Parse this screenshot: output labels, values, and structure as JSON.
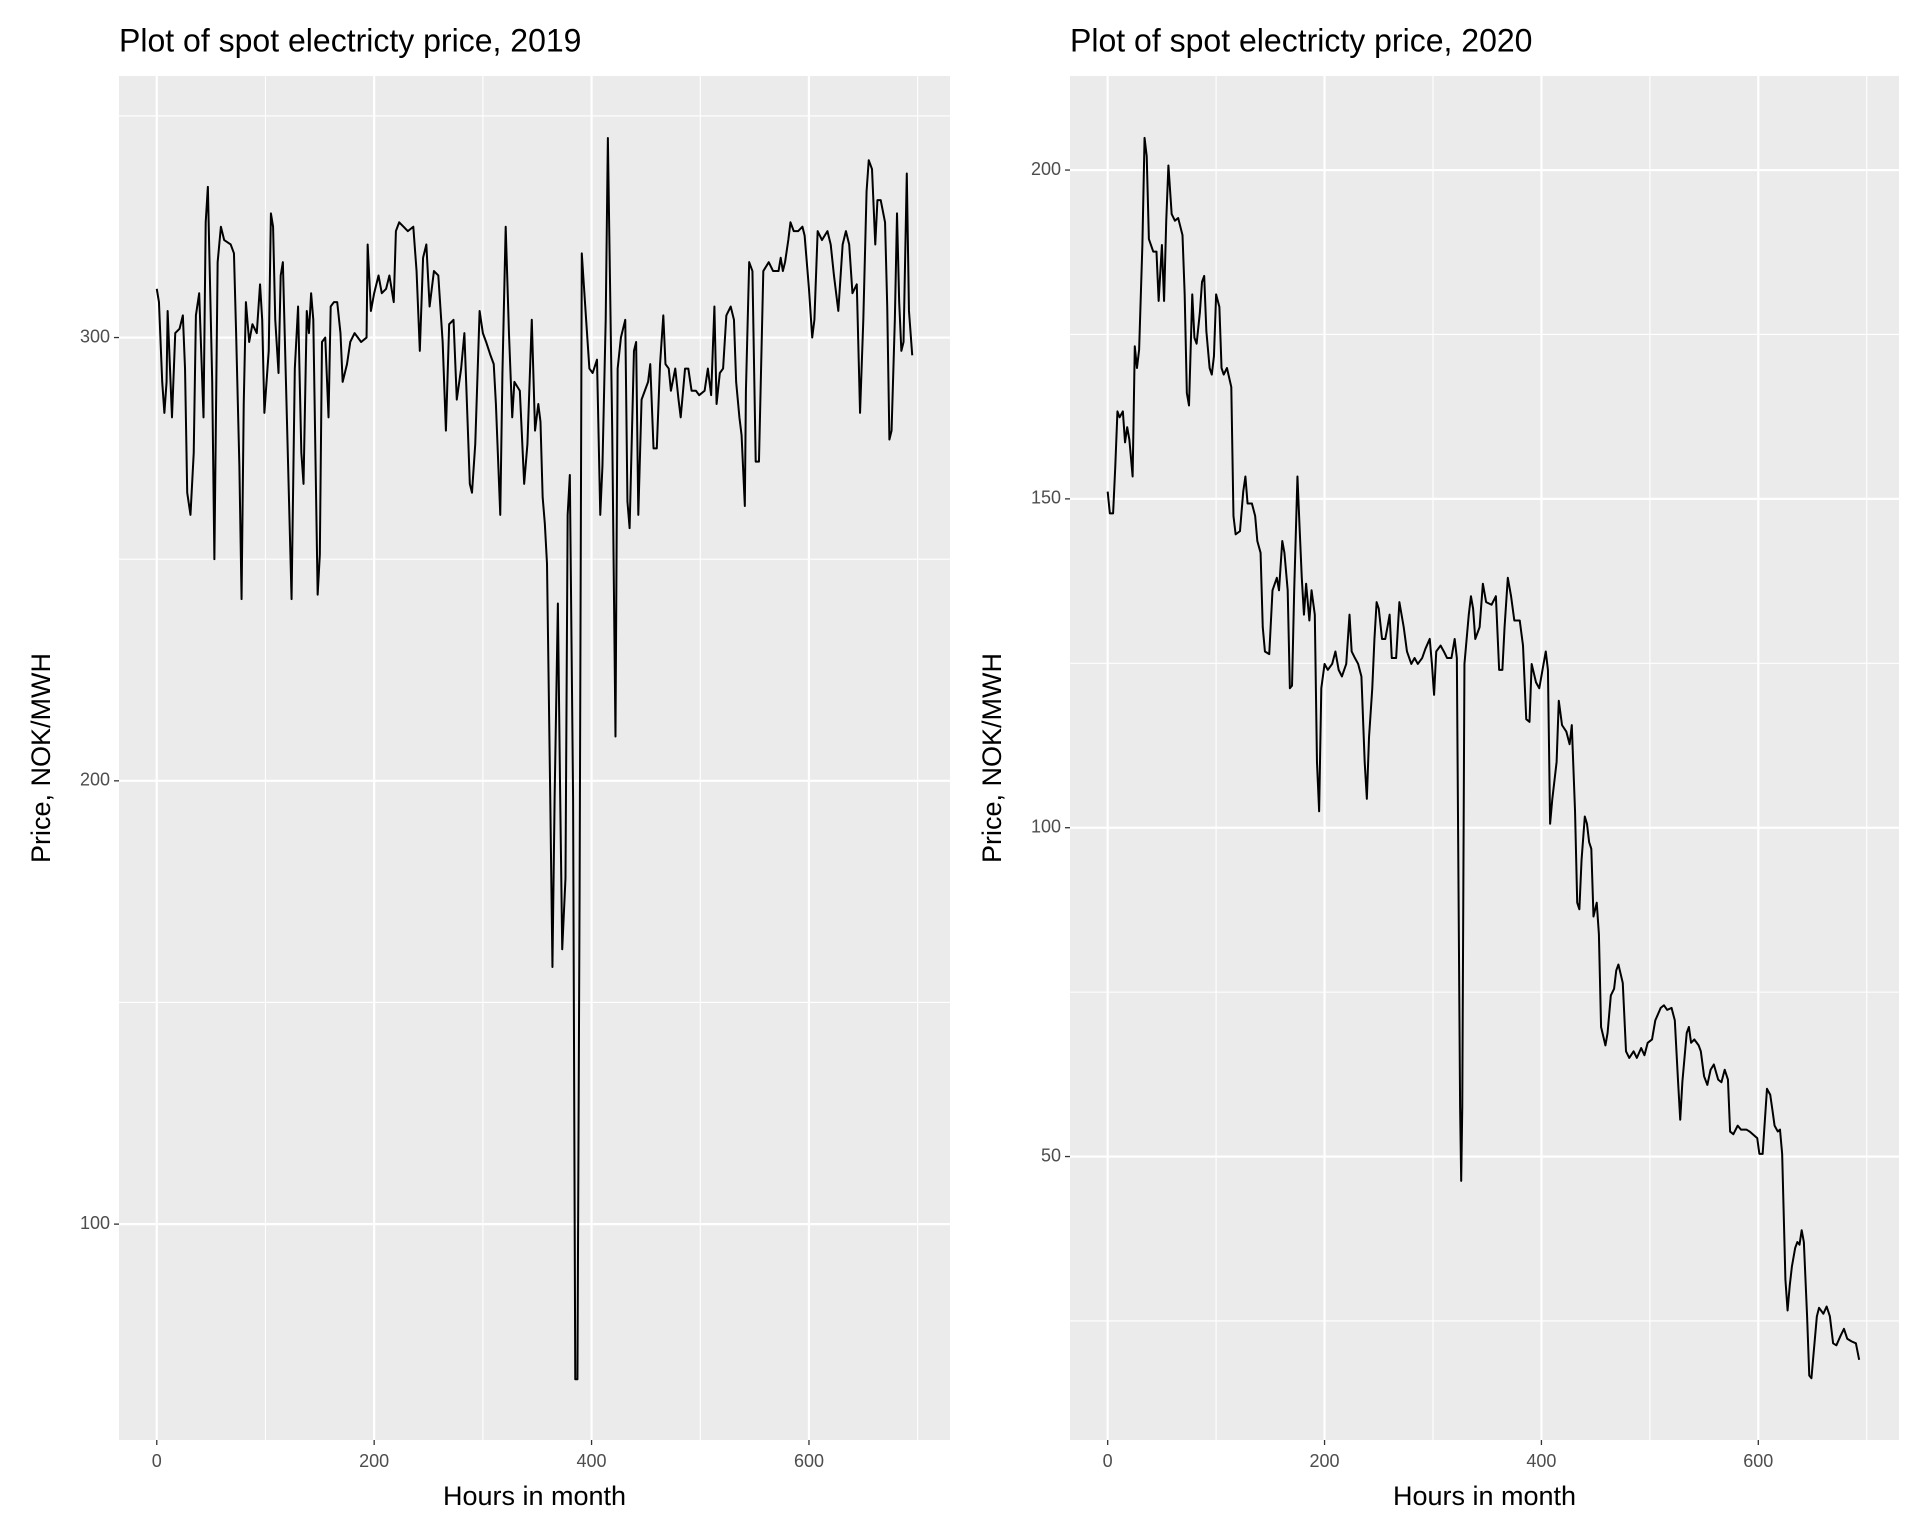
{
  "chart_data": [
    {
      "type": "line",
      "title": "Plot of spot electricty price, 2019",
      "x_label": "Hours in month",
      "y_label": "Price, NOK/MWH",
      "color": "#000000",
      "background": "#ebebeb",
      "grid": true,
      "xlim": [
        -34.75,
        729.75
      ],
      "ylim": [
        51.3,
        359.0
      ],
      "xticks": [
        0,
        200,
        400,
        600
      ],
      "yticks": [
        100,
        200,
        300
      ],
      "x_minor_ticks": [
        100,
        300,
        500,
        700
      ],
      "y_minor_ticks": [
        150,
        250,
        350
      ],
      "x": [
        0,
        2,
        5,
        7,
        9,
        10,
        14,
        17,
        21,
        24,
        26,
        28,
        31,
        34,
        36,
        39,
        43,
        45,
        47,
        51,
        53,
        56,
        59,
        62,
        68,
        71,
        73,
        76,
        78,
        80,
        82,
        85,
        88,
        92,
        95,
        97,
        99,
        103,
        105,
        107,
        109,
        112,
        114,
        116,
        120,
        124,
        127,
        130,
        133,
        135,
        138,
        140,
        142,
        144,
        148,
        150,
        152,
        155,
        158,
        160,
        163,
        166,
        169,
        171,
        175,
        178,
        182,
        188,
        193,
        194,
        197,
        200,
        204,
        207,
        211,
        214,
        218,
        220,
        223,
        227,
        231,
        236,
        239,
        242,
        245,
        248,
        251,
        255,
        259,
        263,
        266,
        269,
        273,
        276,
        280,
        283,
        288,
        290,
        293,
        297,
        300,
        303,
        307,
        310,
        312,
        316,
        318,
        321,
        324,
        327,
        329,
        334,
        338,
        341,
        345,
        348,
        351,
        353,
        355,
        357,
        359,
        362,
        364,
        366,
        369,
        371,
        373,
        376,
        378,
        380,
        383,
        385,
        387,
        389,
        391,
        395,
        398,
        401,
        405,
        408,
        410,
        413,
        415,
        417,
        419,
        422,
        424,
        427,
        431,
        433,
        435,
        439,
        441,
        443,
        446,
        449,
        452,
        454,
        457,
        460,
        463,
        466,
        468,
        471,
        473,
        477,
        480,
        482,
        486,
        489,
        492,
        496,
        499,
        504,
        507,
        510,
        513,
        515,
        518,
        521,
        524,
        528,
        531,
        533,
        536,
        538,
        541,
        542,
        545,
        548,
        551,
        554,
        558,
        563,
        567,
        572,
        574,
        576,
        578,
        581,
        583,
        586,
        590,
        594,
        596,
        600,
        603,
        605,
        608,
        612,
        617,
        620,
        623,
        627,
        631,
        634,
        637,
        640,
        644,
        647,
        650,
        653,
        655,
        658,
        661,
        663,
        666,
        670,
        672,
        674,
        676,
        679,
        681,
        683,
        685,
        687,
        690,
        692,
        695
      ],
      "values": [
        311,
        308,
        290,
        283,
        290,
        306,
        282,
        301,
        302,
        305,
        293,
        265,
        260,
        274,
        305,
        310,
        282,
        326,
        334,
        290,
        250,
        317,
        325,
        322,
        321,
        319,
        301,
        271,
        241,
        285,
        308,
        299,
        303,
        301,
        312,
        304,
        283,
        297,
        328,
        325,
        304,
        292,
        314,
        317,
        279,
        241,
        293,
        307,
        274,
        267,
        306,
        301,
        310,
        304,
        242,
        251,
        299,
        300,
        282,
        307,
        308,
        308,
        301,
        290,
        294,
        299,
        301,
        299,
        300,
        321,
        306,
        310,
        314,
        310,
        311,
        314,
        308,
        324,
        326,
        325,
        324,
        325,
        315,
        297,
        318,
        321,
        307,
        315,
        314,
        299,
        279,
        303,
        304,
        286,
        293,
        301,
        267,
        265,
        276,
        306,
        301,
        299,
        296,
        294,
        285,
        260,
        292,
        325,
        301,
        282,
        290,
        288,
        267,
        276,
        304,
        279,
        285,
        281,
        264,
        258,
        249,
        196,
        158,
        196,
        240,
        199,
        162,
        178,
        260,
        269,
        196,
        65,
        65,
        176,
        319,
        304,
        293,
        292,
        295,
        260,
        271,
        304,
        345,
        312,
        279,
        210,
        293,
        300,
        304,
        263,
        257,
        297,
        299,
        260,
        286,
        288,
        290,
        294,
        275,
        275,
        294,
        305,
        294,
        293,
        288,
        293,
        286,
        282,
        293,
        293,
        288,
        288,
        287,
        288,
        293,
        287,
        307,
        285,
        292,
        293,
        305,
        307,
        304,
        290,
        282,
        278,
        262,
        288,
        317,
        315,
        272,
        272,
        315,
        317,
        315,
        315,
        318,
        315,
        317,
        322,
        326,
        324,
        324,
        325,
        323,
        311,
        300,
        304,
        324,
        322,
        324,
        321,
        314,
        306,
        321,
        324,
        321,
        310,
        312,
        283,
        304,
        333,
        340,
        338,
        321,
        331,
        331,
        326,
        307,
        277,
        279,
        304,
        328,
        308,
        297,
        299,
        337,
        306,
        296
      ]
    },
    {
      "type": "line",
      "title": "Plot of spot electricty price, 2020",
      "x_label": "Hours in month",
      "y_label": "Price, NOK/MWH",
      "color": "#000000",
      "background": "#ebebeb",
      "grid": true,
      "xlim": [
        -34.75,
        729.75
      ],
      "ylim": [
        6.9,
        214.3
      ],
      "xticks": [
        0,
        200,
        400,
        600
      ],
      "yticks": [
        50,
        100,
        150,
        200
      ],
      "x_minor_ticks": [
        100,
        300,
        500,
        700
      ],
      "y_minor_ticks": [
        25,
        75,
        125,
        175
      ],
      "x": [
        0,
        2,
        5,
        7,
        9,
        11,
        14,
        16,
        18,
        20,
        23,
        25,
        27,
        29,
        32,
        34,
        36,
        38,
        42,
        45,
        47,
        50,
        52,
        54,
        56,
        59,
        62,
        65,
        69,
        71,
        73,
        75,
        78,
        80,
        82,
        85,
        87,
        89,
        91,
        94,
        96,
        98,
        100,
        103,
        105,
        107,
        110,
        114,
        116,
        118,
        122,
        125,
        127,
        129,
        133,
        136,
        138,
        141,
        143,
        145,
        149,
        152,
        156,
        158,
        161,
        163,
        166,
        168,
        170,
        172,
        175,
        177,
        179,
        181,
        183,
        186,
        188,
        191,
        193,
        195,
        197,
        200,
        203,
        207,
        210,
        213,
        216,
        220,
        223,
        225,
        228,
        231,
        234,
        237,
        239,
        241,
        244,
        246,
        248,
        250,
        253,
        256,
        258,
        260,
        262,
        266,
        269,
        273,
        276,
        280,
        283,
        286,
        290,
        293,
        297,
        299,
        301,
        303,
        307,
        310,
        313,
        317,
        320,
        322,
        325,
        326,
        327,
        329,
        333,
        335,
        337,
        339,
        343,
        346,
        349,
        354,
        358,
        361,
        364,
        366,
        369,
        372,
        375,
        380,
        383,
        386,
        389,
        391,
        395,
        398,
        401,
        404,
        406,
        408,
        410,
        414,
        416,
        419,
        423,
        426,
        428,
        431,
        433,
        435,
        437,
        440,
        442,
        444,
        446,
        448,
        451,
        453,
        455,
        459,
        461,
        464,
        467,
        469,
        471,
        475,
        478,
        481,
        485,
        488,
        492,
        495,
        498,
        502,
        505,
        510,
        513,
        516,
        520,
        523,
        526,
        528,
        530,
        534,
        536,
        538,
        541,
        545,
        547,
        550,
        553,
        556,
        559,
        563,
        566,
        569,
        572,
        574,
        577,
        581,
        584,
        589,
        592,
        599,
        601,
        604,
        608,
        611,
        613,
        615,
        618,
        620,
        622,
        625,
        627,
        629,
        631,
        634,
        636,
        638,
        640,
        642,
        645,
        647,
        649,
        651,
        654,
        656,
        660,
        663,
        666,
        669,
        672,
        676,
        679,
        682,
        686,
        690,
        693
      ],
      "values": [
        151.1,
        147.8,
        147.8,
        154.9,
        163.3,
        162.4,
        163.3,
        158.6,
        160.9,
        159.0,
        153.4,
        173.2,
        169.9,
        172.7,
        188.6,
        204.9,
        202.1,
        189.5,
        187.6,
        187.6,
        180.1,
        188.6,
        180.1,
        192.3,
        200.7,
        193.3,
        192.3,
        192.7,
        190.1,
        181.1,
        166.1,
        164.2,
        181.1,
        174.5,
        173.6,
        178.3,
        183.0,
        183.9,
        175.5,
        169.9,
        168.9,
        171.7,
        181.1,
        179.2,
        169.9,
        168.9,
        169.9,
        167.0,
        147.4,
        144.6,
        145.1,
        151.1,
        153.4,
        149.3,
        149.3,
        147.4,
        143.6,
        141.8,
        130.5,
        126.8,
        126.4,
        136.1,
        138.0,
        136.1,
        143.6,
        141.8,
        136.1,
        121.2,
        121.6,
        136.1,
        153.4,
        145.5,
        138.0,
        132.4,
        137.1,
        131.5,
        136.1,
        132.4,
        110.0,
        102.5,
        121.2,
        124.9,
        124.0,
        124.9,
        126.8,
        124.0,
        123.0,
        124.9,
        132.4,
        126.8,
        125.8,
        124.9,
        123.0,
        110.0,
        104.4,
        113.7,
        121.2,
        128.7,
        134.3,
        133.3,
        128.7,
        128.7,
        130.5,
        132.4,
        125.8,
        125.8,
        134.3,
        130.5,
        126.8,
        124.9,
        125.8,
        124.9,
        125.8,
        127.2,
        128.7,
        124.9,
        120.2,
        126.8,
        127.7,
        126.8,
        125.8,
        125.8,
        128.7,
        125.8,
        57.5,
        46.3,
        57.5,
        124.9,
        132.4,
        135.2,
        133.3,
        128.7,
        130.5,
        137.1,
        134.3,
        133.9,
        135.2,
        124.0,
        124.0,
        130.5,
        138.0,
        135.2,
        131.5,
        131.5,
        127.7,
        116.5,
        116.1,
        124.9,
        122.1,
        121.2,
        124.0,
        126.8,
        124.0,
        100.6,
        104.3,
        110.0,
        119.3,
        115.6,
        114.6,
        112.7,
        115.6,
        102.5,
        88.6,
        87.6,
        95.1,
        101.7,
        100.6,
        97.8,
        96.8,
        86.5,
        88.6,
        83.8,
        69.7,
        66.9,
        68.8,
        74.5,
        75.5,
        78.3,
        79.2,
        76.4,
        66.0,
        65.0,
        66.0,
        65.0,
        66.5,
        65.4,
        67.3,
        67.8,
        70.7,
        72.6,
        73.0,
        72.3,
        72.6,
        70.7,
        61.4,
        55.6,
        61.4,
        68.8,
        69.7,
        67.3,
        67.8,
        66.9,
        66.0,
        62.2,
        60.9,
        63.2,
        64.0,
        61.7,
        61.3,
        63.2,
        61.7,
        53.8,
        53.4,
        54.7,
        54.1,
        54.1,
        53.8,
        52.8,
        50.4,
        50.4,
        60.3,
        59.4,
        57.1,
        54.7,
        53.8,
        54.1,
        50.4,
        31.3,
        26.6,
        30.4,
        33.3,
        36.1,
        37.0,
        36.6,
        38.8,
        37.0,
        25.7,
        16.7,
        16.3,
        20.1,
        25.7,
        27.0,
        26.1,
        27.2,
        25.7,
        21.6,
        21.3,
        22.8,
        23.8,
        22.3,
        21.9,
        21.6,
        19.1
      ]
    }
  ]
}
